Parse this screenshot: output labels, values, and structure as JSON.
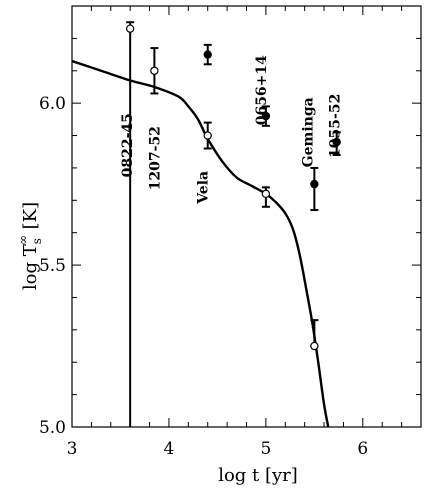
{
  "chart_data": {
    "type": "scatter",
    "xlabel": "log t [yr]",
    "ylabel_parts": {
      "main": "log T",
      "sup": "∞",
      "sub": "s",
      "unit": " [K]"
    },
    "xlim": [
      3,
      6.6
    ],
    "ylim": [
      5.0,
      6.3
    ],
    "xticks": [
      {
        "value": 3,
        "label": "3"
      },
      {
        "value": 4,
        "label": "4"
      },
      {
        "value": 5,
        "label": "5"
      },
      {
        "value": 6,
        "label": "6"
      }
    ],
    "yticks": [
      {
        "value": 5.0,
        "label": "5.0"
      },
      {
        "value": 5.5,
        "label": "5.5"
      },
      {
        "value": 6.0,
        "label": "6.0"
      }
    ],
    "curve": {
      "x": [
        3.0,
        3.3,
        3.6,
        3.85,
        4.1,
        4.2,
        4.3,
        4.4,
        4.55,
        4.7,
        4.85,
        5.0,
        5.1,
        5.2,
        5.28,
        5.35,
        5.42,
        5.48,
        5.54,
        5.6,
        5.65
      ],
      "y": [
        6.13,
        6.1,
        6.07,
        6.05,
        6.02,
        5.99,
        5.95,
        5.89,
        5.82,
        5.77,
        5.745,
        5.72,
        5.695,
        5.66,
        5.61,
        5.53,
        5.42,
        5.32,
        5.2,
        5.07,
        4.99
      ]
    },
    "points": [
      {
        "name": "0822-45",
        "x": 3.6,
        "y": 6.23,
        "yerr": [
          5.0,
          0.02
        ],
        "marker": "open",
        "cap": true
      },
      {
        "name": "1207-52",
        "x": 3.85,
        "y": 6.1,
        "yerr": [
          0.07,
          0.07
        ],
        "marker": "open",
        "cap": true
      },
      {
        "name": "Vela",
        "x": 4.4,
        "y": 5.9,
        "yerr": [
          0.04,
          0.04
        ],
        "marker": "open",
        "cap": true
      },
      {
        "name": "pt-0656-a",
        "x": 4.4,
        "y": 6.15,
        "yerr": [
          0.03,
          0.03
        ],
        "marker": "filled",
        "cap": true
      },
      {
        "name": "0656+14",
        "x": 5.0,
        "y": 5.96,
        "yerr": [
          0.03,
          0.03
        ],
        "marker": "filled",
        "cap": true
      },
      {
        "name": "pt-vela-b",
        "x": 5.0,
        "y": 5.72,
        "yerr": [
          0.04,
          0.02
        ],
        "marker": "open",
        "cap": true
      },
      {
        "name": "Geminga",
        "x": 5.5,
        "y": 5.75,
        "yerr": [
          0.08,
          0.05
        ],
        "marker": "filled",
        "cap": true
      },
      {
        "name": "pt-geminga-b",
        "x": 5.5,
        "y": 5.25,
        "yerr": [
          0.0,
          0.08
        ],
        "marker": "open",
        "cap": true
      },
      {
        "name": "1055-52",
        "x": 5.73,
        "y": 5.88,
        "yerr": [
          0.04,
          0.03
        ],
        "marker": "filled",
        "cap": true
      }
    ],
    "labels": [
      {
        "text": "0822-45",
        "x": 3.62,
        "y": 5.87
      },
      {
        "text": "1207-52",
        "x": 3.9,
        "y": 5.83
      },
      {
        "text": "Vela",
        "x": 4.4,
        "y": 5.74
      },
      {
        "text": "0656+14",
        "x": 5.0,
        "y": 6.04
      },
      {
        "text": "Geminga",
        "x": 5.48,
        "y": 5.91
      },
      {
        "text": "1055-52",
        "x": 5.76,
        "y": 5.93
      }
    ]
  }
}
